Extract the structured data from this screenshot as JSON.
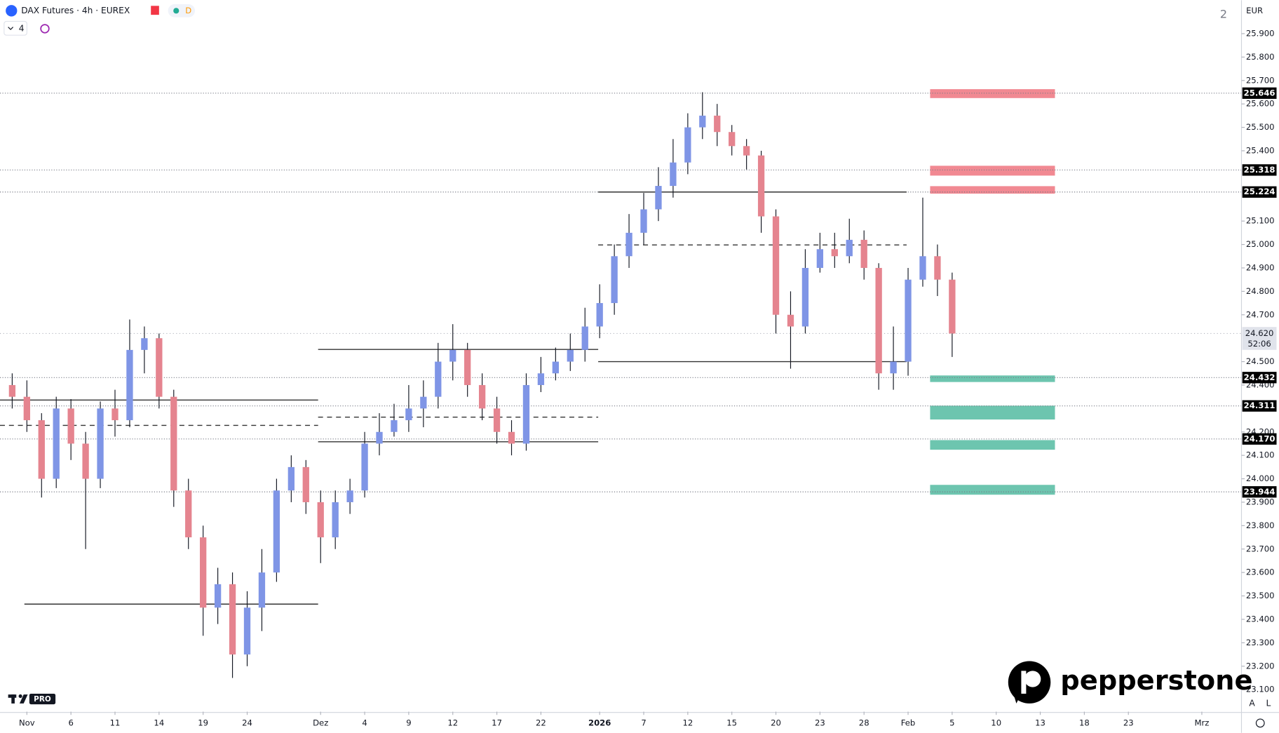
{
  "header": {
    "symbol": "DAX Futures · 4h · EUREX",
    "badge": "D",
    "indicator_count": "4",
    "layout_number": "2",
    "brand": "pepperstone",
    "logo_tag": "PRO",
    "scale_buttons": [
      "A",
      "L"
    ]
  },
  "chart_data": {
    "type": "candlestick",
    "title": "DAX Futures · 4h · EUREX",
    "currency": "EUR",
    "up_color": "#7f95e6",
    "down_color": "#e5848f",
    "x": [
      -1,
      0,
      1,
      2,
      3,
      4,
      5,
      6,
      7,
      8,
      9,
      10,
      11,
      12,
      13,
      14,
      15,
      16,
      17,
      18,
      19,
      20,
      21,
      22,
      23,
      24,
      25,
      26,
      27,
      28,
      29,
      30,
      31,
      32,
      33,
      34,
      35,
      36,
      37,
      38,
      39,
      40,
      41,
      42,
      43,
      44,
      45,
      46,
      47,
      48,
      49,
      50,
      51,
      52,
      53,
      54,
      55,
      56,
      57,
      58,
      59,
      60,
      61,
      62,
      63
    ],
    "open": [
      24400,
      24350,
      24250,
      24000,
      24300,
      24150,
      24000,
      24300,
      24250,
      24550,
      24600,
      24350,
      23950,
      23750,
      23450,
      23550,
      23250,
      23450,
      23600,
      23950,
      24050,
      23900,
      23750,
      23900,
      23950,
      24150,
      24200,
      24250,
      24300,
      24350,
      24500,
      24550,
      24400,
      24300,
      24200,
      24150,
      24400,
      24450,
      24500,
      24550,
      24650,
      24750,
      24950,
      25050,
      25150,
      25250,
      25350,
      25500,
      25550,
      25480,
      25420,
      25380,
      25120,
      24700,
      24650,
      24900,
      24980,
      24950,
      25020,
      24900,
      24450,
      24500,
      24850,
      24950,
      24850
    ],
    "high": [
      24450,
      24420,
      24280,
      24350,
      24340,
      24200,
      24330,
      24380,
      24680,
      24650,
      24620,
      24380,
      24000,
      23800,
      23620,
      23600,
      23520,
      23700,
      24000,
      24100,
      24080,
      23950,
      23950,
      24000,
      24200,
      24280,
      24320,
      24400,
      24420,
      24580,
      24660,
      24580,
      24450,
      24350,
      24250,
      24450,
      24520,
      24560,
      24620,
      24730,
      24830,
      25000,
      25130,
      25220,
      25330,
      25450,
      25560,
      25650,
      25600,
      25510,
      25450,
      25400,
      25150,
      24800,
      24980,
      25050,
      25050,
      25110,
      25060,
      24920,
      24650,
      24900,
      25200,
      25000,
      24880
    ],
    "low": [
      24300,
      24200,
      23920,
      23960,
      24080,
      23700,
      23960,
      24180,
      24220,
      24450,
      24300,
      23880,
      23700,
      23330,
      23380,
      23150,
      23200,
      23350,
      23560,
      23900,
      23850,
      23640,
      23700,
      23850,
      23920,
      24100,
      24180,
      24200,
      24220,
      24300,
      24420,
      24350,
      24250,
      24150,
      24100,
      24120,
      24370,
      24420,
      24460,
      24500,
      24600,
      24700,
      24900,
      25000,
      25100,
      25200,
      25300,
      25450,
      25420,
      25380,
      25320,
      25050,
      24620,
      24470,
      24620,
      24880,
      24900,
      24920,
      24850,
      24380,
      24380,
      24440,
      24820,
      24780,
      24520
    ],
    "close": [
      24350,
      24250,
      24000,
      24300,
      24150,
      24000,
      24300,
      24250,
      24550,
      24600,
      24350,
      23950,
      23750,
      23450,
      23550,
      23250,
      23450,
      23600,
      23950,
      24050,
      23900,
      23750,
      23900,
      23950,
      24150,
      24200,
      24250,
      24300,
      24350,
      24500,
      24550,
      24400,
      24300,
      24200,
      24150,
      24400,
      24450,
      24500,
      24550,
      24650,
      24750,
      24950,
      25050,
      25150,
      25250,
      25350,
      25500,
      25550,
      25480,
      25420,
      25380,
      25120,
      24700,
      24650,
      24900,
      24980,
      24950,
      25020,
      24900,
      24450,
      24500,
      24850,
      24950,
      24850,
      24620
    ],
    "ylim": [
      23006,
      26043
    ],
    "xlim": [
      -1.83,
      82.7
    ],
    "yticks": [
      {
        "value": 23100,
        "label": "23.100"
      },
      {
        "value": 23200,
        "label": "23.200"
      },
      {
        "value": 23300,
        "label": "23.300"
      },
      {
        "value": 23400,
        "label": "23.400"
      },
      {
        "value": 23500,
        "label": "23.500"
      },
      {
        "value": 23600,
        "label": "23.600"
      },
      {
        "value": 23700,
        "label": "23.700"
      },
      {
        "value": 23800,
        "label": "23.800"
      },
      {
        "value": 23900,
        "label": "23.900"
      },
      {
        "value": 24000,
        "label": "24.000"
      },
      {
        "value": 24100,
        "label": "24.100"
      },
      {
        "value": 24200,
        "label": "24.200"
      },
      {
        "value": 24400,
        "label": "24.400"
      },
      {
        "value": 24500,
        "label": "24.500"
      },
      {
        "value": 24700,
        "label": "24.700"
      },
      {
        "value": 24800,
        "label": "24.800"
      },
      {
        "value": 24900,
        "label": "24.900"
      },
      {
        "value": 25000,
        "label": "25.000"
      },
      {
        "value": 25100,
        "label": "25.100"
      },
      {
        "value": 25400,
        "label": "25.400"
      },
      {
        "value": 25500,
        "label": "25.500"
      },
      {
        "value": 25600,
        "label": "25.600"
      },
      {
        "value": 25700,
        "label": "25.700"
      },
      {
        "value": 25800,
        "label": "25.800"
      },
      {
        "value": 25900,
        "label": "25.900"
      }
    ],
    "xticks": [
      {
        "value": 0,
        "label": "Nov"
      },
      {
        "value": 3,
        "label": "6"
      },
      {
        "value": 6,
        "label": "11"
      },
      {
        "value": 9,
        "label": "14"
      },
      {
        "value": 12,
        "label": "19"
      },
      {
        "value": 15,
        "label": "24"
      },
      {
        "value": 20,
        "label": "Dez"
      },
      {
        "value": 23,
        "label": "4"
      },
      {
        "value": 26,
        "label": "9"
      },
      {
        "value": 29,
        "label": "12"
      },
      {
        "value": 32,
        "label": "17"
      },
      {
        "value": 35,
        "label": "22"
      },
      {
        "value": 39,
        "label": "2026"
      },
      {
        "value": 42,
        "label": "7"
      },
      {
        "value": 45,
        "label": "12"
      },
      {
        "value": 48,
        "label": "15"
      },
      {
        "value": 51,
        "label": "20"
      },
      {
        "value": 54,
        "label": "23"
      },
      {
        "value": 57,
        "label": "28"
      },
      {
        "value": 60,
        "label": "Feb"
      },
      {
        "value": 63,
        "label": "5"
      },
      {
        "value": 66,
        "label": "10"
      },
      {
        "value": 69,
        "label": "13"
      },
      {
        "value": 72,
        "label": "18"
      },
      {
        "value": 75,
        "label": "23"
      },
      {
        "value": 80,
        "label": "Mrz"
      }
    ],
    "levels": [
      {
        "value": 25646,
        "label": "25.646"
      },
      {
        "value": 25318,
        "label": "25.318"
      },
      {
        "value": 25224,
        "label": "25.224"
      },
      {
        "value": 24432,
        "label": "24.432"
      },
      {
        "value": 24311,
        "label": "24.311"
      },
      {
        "value": 24170,
        "label": "24.170"
      },
      {
        "value": 23944,
        "label": "23.944"
      }
    ],
    "current": {
      "value": 24620,
      "label": "24.620",
      "countdown": "52:06"
    },
    "zones": [
      {
        "low": 25625,
        "high": 25663,
        "color": "#f07c86"
      },
      {
        "low": 25294,
        "high": 25336,
        "color": "#f07c86"
      },
      {
        "low": 25217,
        "high": 25249,
        "color": "#f07c86"
      },
      {
        "low": 24413,
        "high": 24441,
        "color": "#5dbfa6"
      },
      {
        "low": 24253,
        "high": 24312,
        "color": "#5dbfa6"
      },
      {
        "low": 24124,
        "high": 24165,
        "color": "#5dbfa6"
      },
      {
        "low": 23932,
        "high": 23974,
        "color": "#5dbfa6"
      }
    ],
    "zone_x": [
      61.5,
      70
    ],
    "segments": [
      {
        "x": [
          -0.17,
          19.83
        ],
        "value": 23465,
        "dashed": false
      },
      {
        "x": [
          -1.83,
          19.83
        ],
        "value": 24336,
        "dashed": false
      },
      {
        "x": [
          -1.83,
          19.83
        ],
        "value": 24228,
        "dashed": true
      },
      {
        "x": [
          19.83,
          38.9
        ],
        "value": 24552,
        "dashed": false
      },
      {
        "x": [
          19.83,
          38.9
        ],
        "value": 24263,
        "dashed": true
      },
      {
        "x": [
          19.83,
          38.9
        ],
        "value": 24158,
        "dashed": false
      },
      {
        "x": [
          38.9,
          59.9
        ],
        "value": 25224,
        "dashed": false
      },
      {
        "x": [
          38.9,
          59.9
        ],
        "value": 24998,
        "dashed": true
      },
      {
        "x": [
          38.9,
          59.9
        ],
        "value": 24500,
        "dashed": false
      }
    ]
  }
}
